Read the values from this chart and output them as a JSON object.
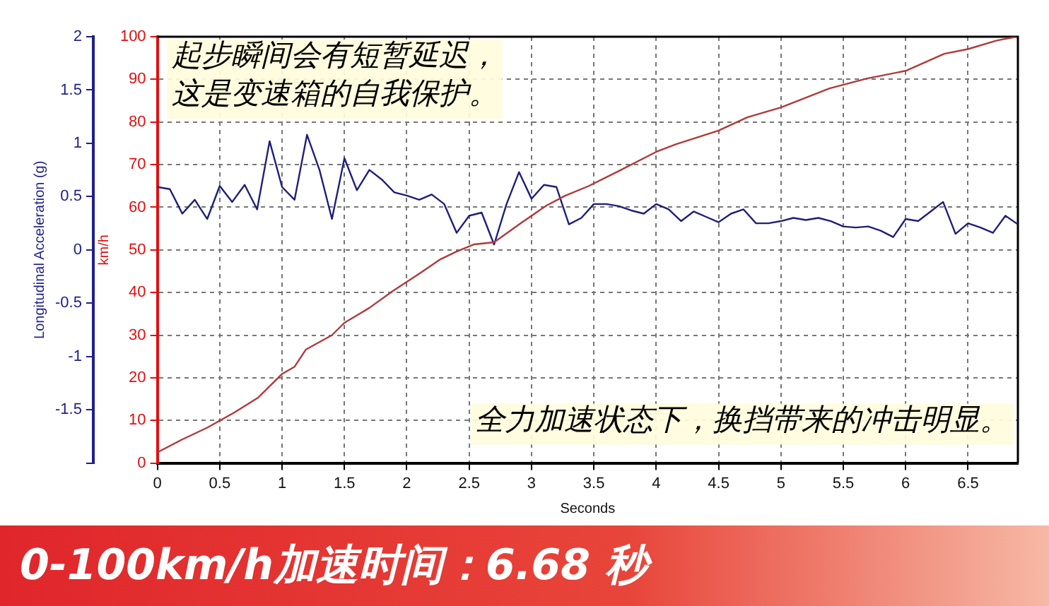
{
  "chart_data": {
    "type": "line",
    "xlabel": "Seconds",
    "ylabel": "km/h",
    "y2label": "Longitudinal Acceleration (g)",
    "xlim": [
      0,
      6.9
    ],
    "xticks": [
      0,
      0.5,
      1,
      1.5,
      2,
      2.5,
      3,
      3.5,
      4,
      4.5,
      5,
      5.5,
      6,
      6.5
    ],
    "ylim": [
      0,
      100
    ],
    "yticks": [
      0,
      10,
      20,
      30,
      40,
      50,
      60,
      70,
      80,
      90,
      100
    ],
    "y2lim": [
      -2,
      2
    ],
    "y2ticks": [
      {
        "value": -2,
        "label": null
      },
      -1.5,
      -1,
      -0.5,
      0,
      0.5,
      1,
      1.5,
      2
    ],
    "grid": true,
    "legend": false,
    "marker": "none",
    "line_style": "solid",
    "series": [
      {
        "color": "#b03a3a",
        "axis": "y",
        "x": [
          0,
          0.19,
          0.4,
          0.62,
          0.81,
          1.0,
          1.1,
          1.19,
          1.4,
          1.5,
          1.7,
          1.89,
          2.1,
          2.27,
          2.39,
          2.54,
          2.7,
          2.92,
          3.12,
          3.27,
          3.46,
          3.7,
          4.0,
          4.16,
          4.5,
          4.73,
          5.0,
          5.39,
          5.69,
          6.0,
          6.31,
          6.5,
          6.73,
          6.89
        ],
        "values": [
          2.5,
          5.4,
          8.3,
          11.9,
          15.4,
          20.9,
          22.6,
          26.6,
          30.0,
          32.9,
          36.4,
          40.4,
          44.4,
          47.8,
          49.5,
          51.3,
          51.8,
          56.4,
          60.4,
          62.7,
          65.0,
          68.5,
          73.0,
          74.8,
          78.0,
          81.1,
          83.4,
          87.9,
          90.2,
          92.0,
          96.0,
          97.1,
          99.1,
          100
        ]
      },
      {
        "color": "#1f1f7a",
        "axis": "y2",
        "x": [
          0,
          0.1,
          0.2,
          0.3,
          0.4,
          0.5,
          0.6,
          0.7,
          0.8,
          0.9,
          1.0,
          1.1,
          1.2,
          1.3,
          1.4,
          1.5,
          1.6,
          1.7,
          1.8,
          1.9,
          2.0,
          2.1,
          2.2,
          2.3,
          2.4,
          2.5,
          2.6,
          2.7,
          2.8,
          2.9,
          3.0,
          3.1,
          3.2,
          3.3,
          3.4,
          3.5,
          3.6,
          3.7,
          3.8,
          3.9,
          4.0,
          4.1,
          4.2,
          4.3,
          4.4,
          4.5,
          4.6,
          4.7,
          4.8,
          4.9,
          5.0,
          5.1,
          5.2,
          5.3,
          5.4,
          5.5,
          5.6,
          5.7,
          5.8,
          5.9,
          6.0,
          6.1,
          6.2,
          6.3,
          6.4,
          6.5,
          6.6,
          6.7,
          6.8,
          6.9
        ],
        "values": [
          0.59,
          0.57,
          0.34,
          0.47,
          0.29,
          0.6,
          0.45,
          0.61,
          0.38,
          1.02,
          0.59,
          0.47,
          1.08,
          0.75,
          0.29,
          0.86,
          0.56,
          0.75,
          0.66,
          0.54,
          0.51,
          0.47,
          0.52,
          0.43,
          0.16,
          0.32,
          0.35,
          0.05,
          0.43,
          0.73,
          0.48,
          0.61,
          0.59,
          0.24,
          0.3,
          0.43,
          0.43,
          0.41,
          0.37,
          0.34,
          0.43,
          0.38,
          0.27,
          0.36,
          0.31,
          0.26,
          0.34,
          0.38,
          0.25,
          0.25,
          0.27,
          0.3,
          0.28,
          0.3,
          0.27,
          0.22,
          0.21,
          0.22,
          0.18,
          0.12,
          0.29,
          0.27,
          0.36,
          0.45,
          0.15,
          0.25,
          0.21,
          0.16,
          0.32,
          0.24
        ]
      }
    ],
    "annotations": [
      "起步瞬间会有短暂延迟，这是变速箱的自我保护。",
      "全力加速状态下，换挡带来的冲击明显。",
      "0-100km/h加速时间：6.68 秒"
    ]
  }
}
